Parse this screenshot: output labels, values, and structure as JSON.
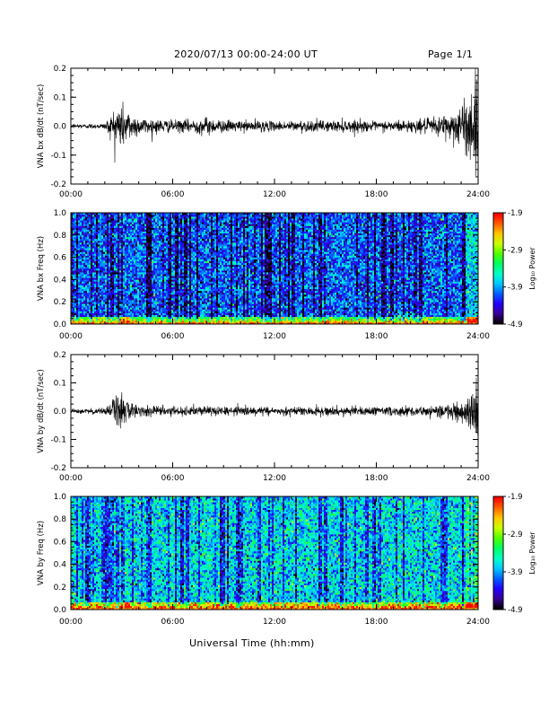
{
  "header": {
    "title": "2020/07/13  00:00-24:00 UT",
    "page": "Page 1/1"
  },
  "footer": {
    "xlabel": "Universal Time (hh:mm)"
  },
  "colorbar": {
    "label": "Log₁₀ Power",
    "ticks": [
      "-1.9",
      "-2.9",
      "-3.9",
      "-4.9"
    ],
    "range": [
      -4.9,
      -1.9
    ],
    "colormap": [
      "#000000",
      "#3a0096",
      "#2200ff",
      "#0060ff",
      "#00c8ff",
      "#00ffc8",
      "#00ff60",
      "#50ff00",
      "#c8ff00",
      "#ffc800",
      "#ff6000",
      "#ff0000"
    ]
  },
  "chart_data": [
    {
      "type": "line",
      "ylabel": "VNA bx dB/dt (nT/sec)",
      "xticks": [
        "00:00",
        "06:00",
        "12:00",
        "18:00",
        "24:00"
      ],
      "xlim": [
        0,
        24
      ],
      "ylim": [
        -0.2,
        0.2
      ],
      "yticks": [
        "0.2",
        "0.1",
        "0.0",
        "-0.1",
        "-0.2"
      ],
      "series": [
        {
          "values_note_x_hours": [
            0,
            1,
            2,
            2.9,
            3.1,
            3.5,
            4,
            5,
            6,
            7,
            8,
            9,
            10,
            11,
            12,
            13,
            14,
            15,
            16,
            17,
            18,
            19,
            20,
            21,
            22,
            23,
            23.5,
            24
          ],
          "envelope_amplitude": [
            0.008,
            0.008,
            0.01,
            0.09,
            0.07,
            0.05,
            0.03,
            0.025,
            0.02,
            0.022,
            0.03,
            0.02,
            0.018,
            0.02,
            0.015,
            0.018,
            0.02,
            0.018,
            0.02,
            0.02,
            0.015,
            0.02,
            0.02,
            0.025,
            0.04,
            0.07,
            0.12,
            0.15
          ]
        }
      ]
    },
    {
      "type": "heatmap",
      "ylabel": "VNA bx Freq (Hz)",
      "xticks": [
        "00:00",
        "06:00",
        "12:00",
        "18:00",
        "24:00"
      ],
      "xlim": [
        0,
        24
      ],
      "ylim": [
        0.0,
        1.0
      ],
      "yticks": [
        "1.0",
        "0.8",
        "0.6",
        "0.4",
        "0.2",
        "0.0"
      ],
      "value_range": [
        -4.9,
        -1.9
      ],
      "background_level": -4.1
    },
    {
      "type": "line",
      "ylabel": "VNA by dB/dt (nT/sec)",
      "xticks": [
        "00:00",
        "06:00",
        "12:00",
        "18:00",
        "24:00"
      ],
      "xlim": [
        0,
        24
      ],
      "ylim": [
        -0.2,
        0.2
      ],
      "yticks": [
        "0.2",
        "0.1",
        "0.0",
        "-0.1",
        "-0.2"
      ],
      "series": [
        {
          "values_note_x_hours": [
            0,
            1,
            2,
            2.9,
            3.1,
            3.5,
            4,
            5,
            6,
            7,
            8,
            9,
            10,
            11,
            12,
            13,
            14,
            15,
            16,
            17,
            18,
            19,
            20,
            21,
            22,
            23,
            23.5,
            24
          ],
          "envelope_amplitude": [
            0.008,
            0.008,
            0.01,
            0.08,
            0.05,
            0.03,
            0.02,
            0.018,
            0.015,
            0.016,
            0.018,
            0.015,
            0.015,
            0.015,
            0.013,
            0.014,
            0.015,
            0.016,
            0.015,
            0.016,
            0.014,
            0.015,
            0.016,
            0.018,
            0.025,
            0.04,
            0.06,
            0.08
          ]
        }
      ]
    },
    {
      "type": "heatmap",
      "ylabel": "VNA by Freq (Hz)",
      "xticks": [
        "00:00",
        "06:00",
        "12:00",
        "18:00",
        "24:00"
      ],
      "xlim": [
        0,
        24
      ],
      "ylim": [
        0.0,
        1.0
      ],
      "yticks": [
        "1.0",
        "0.8",
        "0.6",
        "0.4",
        "0.2",
        "0.0"
      ],
      "value_range": [
        -4.9,
        -1.9
      ],
      "background_level": -3.7
    }
  ]
}
